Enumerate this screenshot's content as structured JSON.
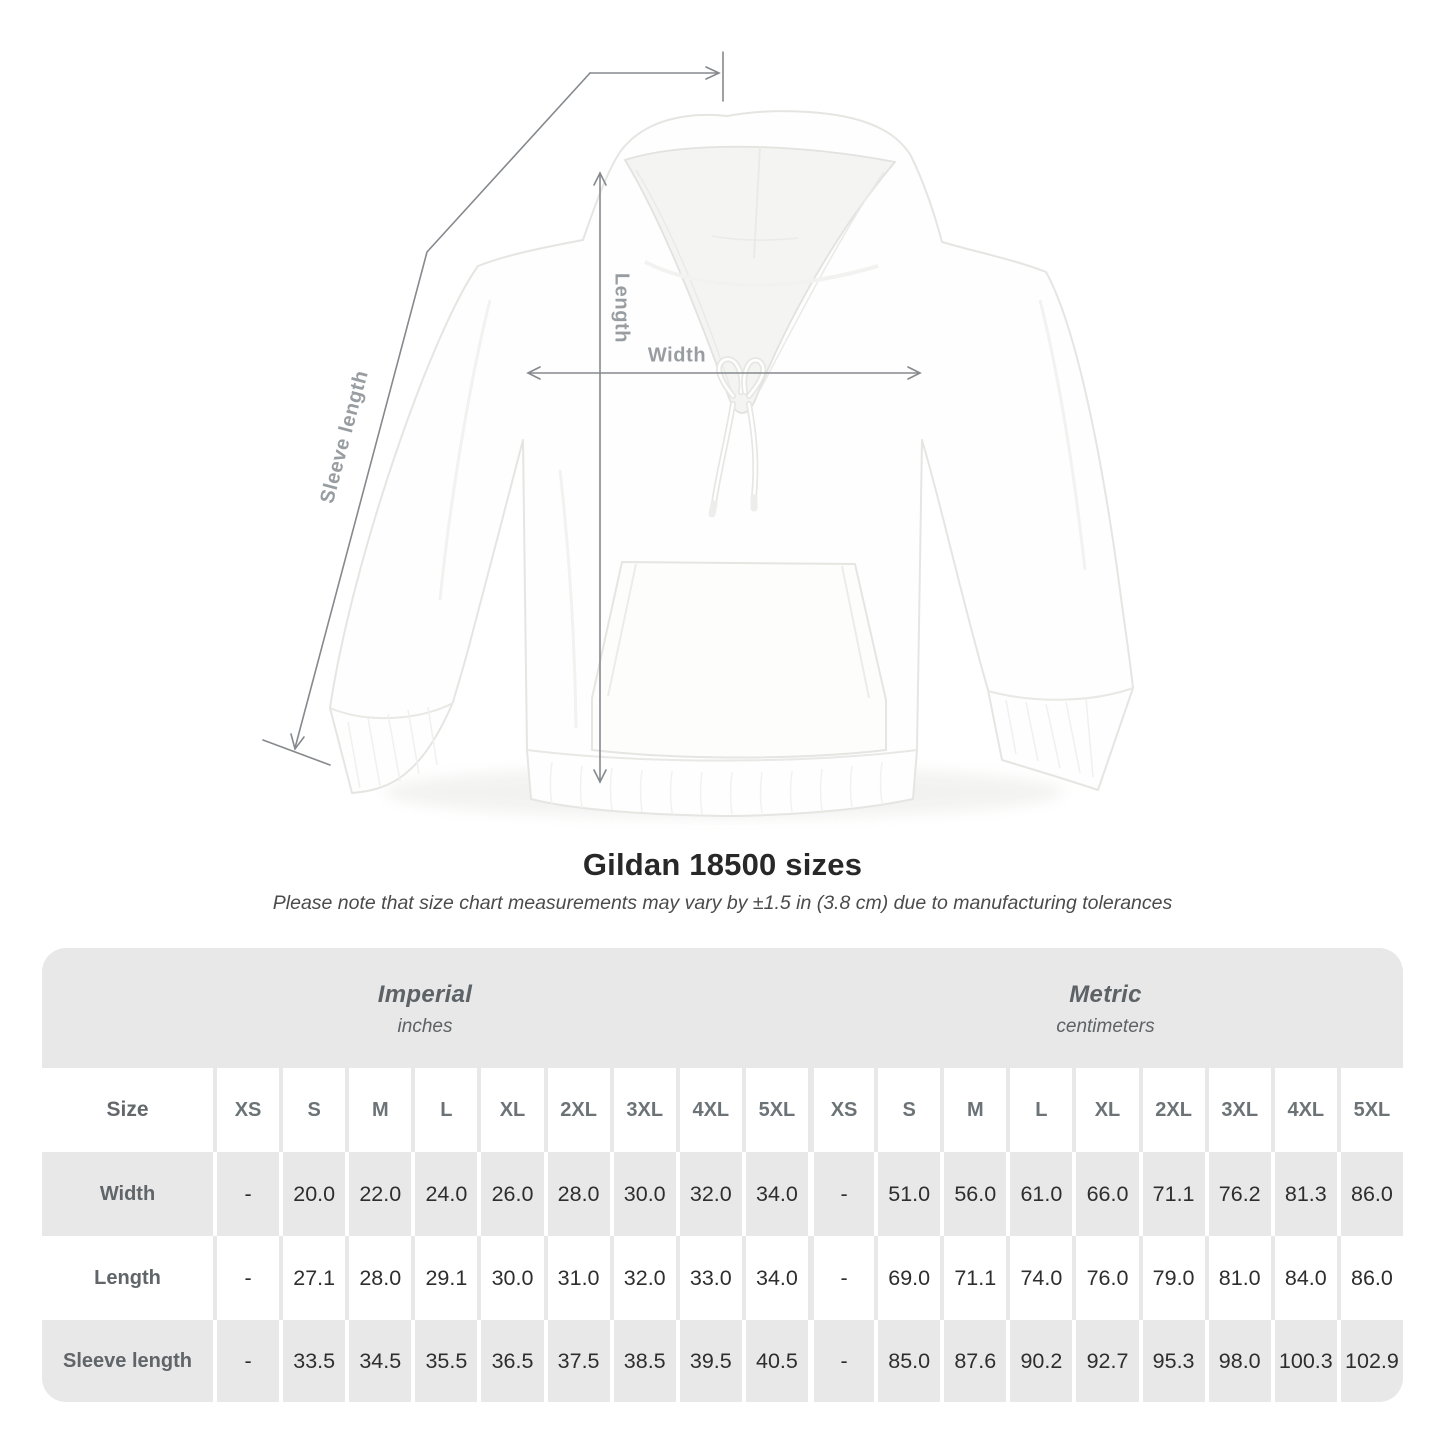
{
  "figure": {
    "labels": {
      "sleeve": "Sleeve length",
      "length": "Length",
      "width": "Width"
    },
    "line_color": "#85898d",
    "label_color": "#989da1"
  },
  "title": "Gildan 18500 sizes",
  "subtitle": "Please note that size chart measurements may vary by ±1.5 in (3.8 cm) due to manufacturing tolerances",
  "table": {
    "background_gray": "#e8e8e8",
    "sections": [
      {
        "name": "Imperial",
        "unit": "inches"
      },
      {
        "name": "Metric",
        "unit": "centimeters"
      }
    ],
    "size_header": "Size",
    "sizes": [
      "XS",
      "S",
      "M",
      "L",
      "XL",
      "2XL",
      "3XL",
      "4XL",
      "5XL"
    ],
    "rows": [
      {
        "label": "Width",
        "imperial": [
          "-",
          "20.0",
          "22.0",
          "24.0",
          "26.0",
          "28.0",
          "30.0",
          "32.0",
          "34.0"
        ],
        "metric": [
          "-",
          "51.0",
          "56.0",
          "61.0",
          "66.0",
          "71.1",
          "76.2",
          "81.3",
          "86.0"
        ]
      },
      {
        "label": "Length",
        "imperial": [
          "-",
          "27.1",
          "28.0",
          "29.1",
          "30.0",
          "31.0",
          "32.0",
          "33.0",
          "34.0"
        ],
        "metric": [
          "-",
          "69.0",
          "71.1",
          "74.0",
          "76.0",
          "79.0",
          "81.0",
          "84.0",
          "86.0"
        ]
      },
      {
        "label": "Sleeve length",
        "imperial": [
          "-",
          "33.5",
          "34.5",
          "35.5",
          "36.5",
          "37.5",
          "38.5",
          "39.5",
          "40.5"
        ],
        "metric": [
          "-",
          "85.0",
          "87.6",
          "90.2",
          "92.7",
          "95.3",
          "98.0",
          "100.3",
          "102.9"
        ]
      }
    ]
  }
}
